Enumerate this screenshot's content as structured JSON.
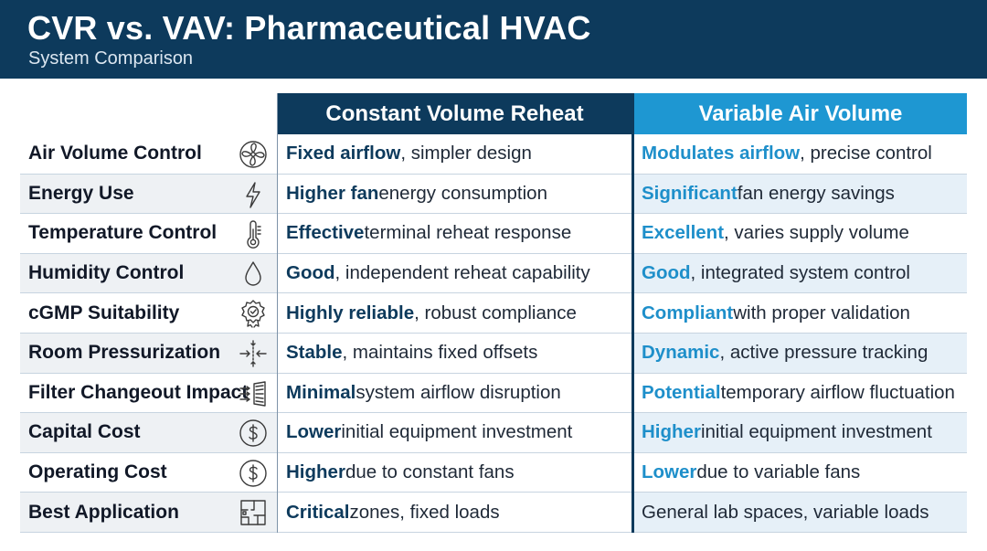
{
  "header": {
    "title": "CVR vs. VAV: Pharmaceutical HVAC",
    "subtitle": "System Comparison"
  },
  "columns": {
    "cvr": "Constant Volume Reheat",
    "vav": "Variable Air Volume"
  },
  "colors": {
    "navy": "#0d3a5c",
    "accent_blue": "#1e97d2"
  },
  "rows": [
    {
      "label": "Air Volume Control",
      "icon": "fan-icon",
      "cvr_key": "Fixed airflow",
      "cvr_rest": ", simpler design",
      "vav_key": "Modulates airflow",
      "vav_rest": ", precise control"
    },
    {
      "label": "Energy Use",
      "icon": "lightning-bolt-icon",
      "cvr_key": "Higher fan",
      "cvr_rest": " energy consumption",
      "vav_key": "Significant",
      "vav_rest": " fan energy savings"
    },
    {
      "label": "Temperature Control",
      "icon": "thermometer-icon",
      "cvr_key": "Effective",
      "cvr_rest": " terminal reheat response",
      "vav_key": "Excellent",
      "vav_rest": ", varies supply volume"
    },
    {
      "label": "Humidity Control",
      "icon": "water-drop-icon",
      "cvr_key": "Good",
      "cvr_rest": ", independent reheat capability",
      "vav_key": "Good",
      "vav_rest": ", integrated system control"
    },
    {
      "label": "cGMP Suitability",
      "icon": "certification-badge-icon",
      "cvr_key": "Highly reliable",
      "cvr_rest": ", robust compliance",
      "vav_key": "Compliant",
      "vav_rest": " with proper validation"
    },
    {
      "label": "Room Pressurization",
      "icon": "pressure-arrows-icon",
      "cvr_key": "Stable",
      "cvr_rest": ", maintains fixed offsets",
      "vav_key": "Dynamic",
      "vav_rest": ", active pressure tracking"
    },
    {
      "label": "Filter Changeout Impact",
      "icon": "air-filter-icon",
      "cvr_key": "Minimal",
      "cvr_rest": " system airflow disruption",
      "vav_key": "Potential",
      "vav_rest": " temporary airflow fluctuation"
    },
    {
      "label": "Capital Cost",
      "icon": "dollar-coin-icon",
      "cvr_key": "Lower",
      "cvr_rest": " initial equipment investment",
      "vav_key": "Higher",
      "vav_rest": " initial equipment investment"
    },
    {
      "label": "Operating Cost",
      "icon": "dollar-coin-icon",
      "cvr_key": "Higher",
      "cvr_rest": " due to constant fans",
      "vav_key": "Lower",
      "vav_rest": " due to variable fans"
    },
    {
      "label": "Best Application",
      "icon": "floor-plan-icon",
      "cvr_key": "Critical",
      "cvr_rest": " zones, fixed loads",
      "vav_key": "",
      "vav_rest": "General lab spaces, variable loads"
    }
  ]
}
